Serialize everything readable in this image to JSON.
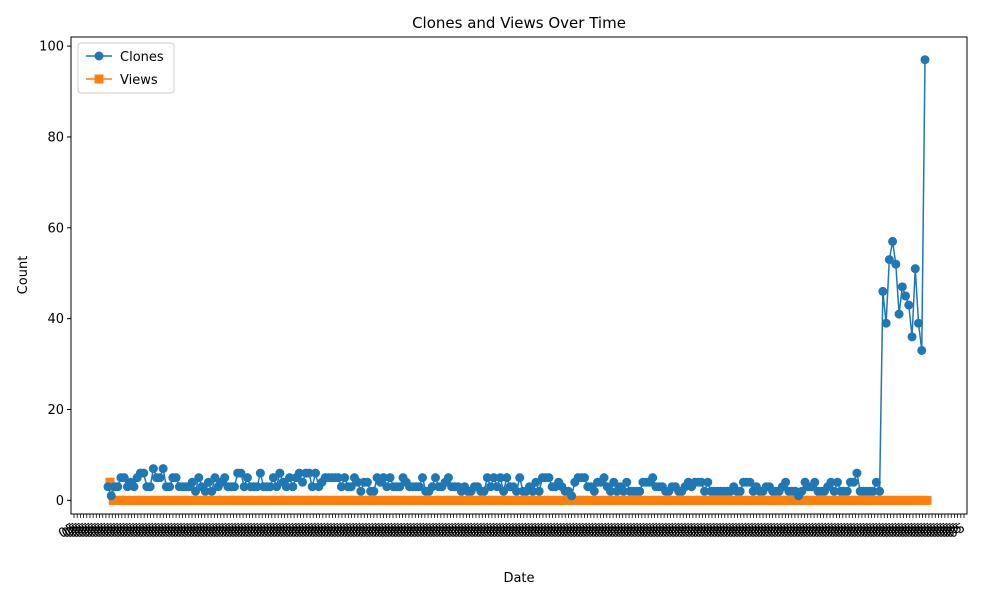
{
  "chart_data": {
    "type": "line",
    "title": "Clones and Views Over Time",
    "xlabel": "Date",
    "ylabel": "Count",
    "ylim": [
      -3,
      102
    ],
    "yticks": [
      0,
      20,
      40,
      60,
      80,
      100
    ],
    "grid": false,
    "legend_position": "top-left",
    "series": [
      {
        "name": "Clones",
        "color": "#1f77b4",
        "marker": "circle",
        "values": [
          3,
          1,
          3,
          3,
          5,
          5,
          3,
          4,
          3,
          5,
          6,
          6,
          3,
          3,
          7,
          5,
          5,
          7,
          3,
          3,
          5,
          5,
          3,
          3,
          3,
          3,
          4,
          2,
          5,
          3,
          2,
          4,
          2,
          5,
          3,
          4,
          5,
          3,
          3,
          3,
          6,
          6,
          3,
          5,
          3,
          3,
          3,
          6,
          3,
          3,
          3,
          5,
          3,
          6,
          4,
          3,
          5,
          3,
          5,
          6,
          4,
          6,
          6,
          3,
          6,
          3,
          4,
          5,
          5,
          5,
          5,
          5,
          3,
          5,
          3,
          3,
          5,
          4,
          2,
          4,
          4,
          2,
          2,
          5,
          4,
          5,
          3,
          5,
          3,
          3,
          3,
          5,
          4,
          3,
          3,
          3,
          3,
          5,
          2,
          2,
          3,
          5,
          3,
          3,
          4,
          5,
          3,
          3,
          3,
          2,
          3,
          2,
          2,
          3,
          3,
          2,
          2,
          5,
          3,
          5,
          3,
          5,
          2,
          5,
          3,
          3,
          2,
          5,
          2,
          2,
          3,
          2,
          4,
          2,
          5,
          5,
          5,
          3,
          3,
          4,
          3,
          2,
          2,
          1,
          4,
          5,
          5,
          5,
          3,
          3,
          2,
          4,
          4,
          5,
          3,
          2,
          4,
          2,
          3,
          2,
          4,
          2,
          2,
          2,
          2,
          4,
          4,
          4,
          5,
          3,
          3,
          3,
          2,
          2,
          3,
          3,
          2,
          2,
          3,
          4,
          3,
          4,
          4,
          4,
          2,
          4,
          2,
          2,
          2,
          2,
          2,
          2,
          2,
          3,
          2,
          2,
          4,
          4,
          4,
          2,
          3,
          2,
          2,
          3,
          3,
          2,
          2,
          2,
          3,
          4,
          2,
          2,
          2,
          1,
          2,
          4,
          3,
          3,
          4,
          2,
          2,
          2,
          3,
          4,
          2,
          4,
          2,
          2,
          2,
          4,
          4,
          6,
          2,
          2,
          2,
          2,
          2,
          4,
          2,
          46,
          39,
          53,
          57,
          52,
          41,
          47,
          45,
          43,
          36,
          51,
          39,
          33,
          97
        ]
      },
      {
        "name": "Views",
        "color": "#ff7f0e",
        "marker": "square",
        "first_value": 4,
        "constant_value": 0
      }
    ],
    "x_tick_label": "05"
  }
}
